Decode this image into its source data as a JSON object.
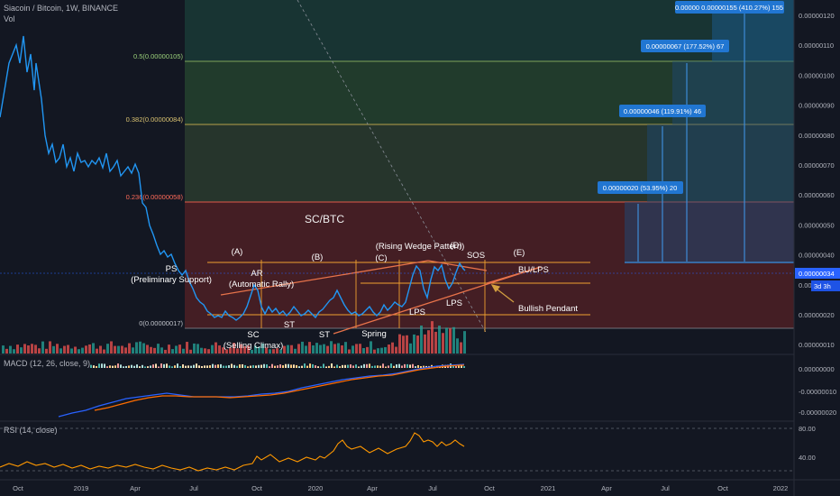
{
  "header": {
    "symbol_line": "Siacoin / Bitcoin, 1W, BINANCE",
    "volume_label": "Vol",
    "macd_label": "MACD (12, 26, close, 9)",
    "rsi_label": "RSI (14, close)"
  },
  "price_axis": {
    "ticks": [
      "0.00000120",
      "0.00000110",
      "0.00000100",
      "0.00000090",
      "0.00000080",
      "0.00000070",
      "0.00000060",
      "0.00000050",
      "0.00000040",
      "0.00000030",
      "0.00000020",
      "0.00000010"
    ],
    "current_price": "0.00000034",
    "countdown": "3d 3h",
    "current_price_color": "#2962ff"
  },
  "macd_axis": {
    "ticks": [
      "0.00000000",
      "-0.00000010",
      "-0.00000020"
    ]
  },
  "rsi_axis": {
    "ticks": [
      "80.00",
      "40.00"
    ]
  },
  "time_axis": {
    "labels": [
      "Oct",
      "2019",
      "Apr",
      "Jul",
      "Oct",
      "2020",
      "Apr",
      "Jul",
      "Oct",
      "2021",
      "Apr",
      "Jul",
      "Oct",
      "2022"
    ]
  },
  "fib_levels": {
    "level_05": "0.5(0.00000105)",
    "level_0382": "0.382(0.00000084)",
    "level_0236": "0.236(0.00000058)",
    "level_0": "0(0.00000017)"
  },
  "targets": [
    {
      "label": "0.00000020 (53.95%) 20"
    },
    {
      "label": "0.00000046 (119.91%) 46"
    },
    {
      "label": "0.00000067 (177.52%) 67"
    },
    {
      "label": "0.00000 0.00000155 (410.27%) 155"
    }
  ],
  "annotations": {
    "pair_title": "SC/BTC",
    "ps": "PS",
    "ps_full": "(Preliminary Support)",
    "ar": "AR",
    "ar_full": "(Automatic Rally)",
    "sc": "SC",
    "sc_full": "(Selling Climax)",
    "st1": "ST",
    "st2": "ST",
    "spring": "Spring",
    "lps1": "LPS",
    "lps2": "LPS",
    "sos": "SOS",
    "phase_a": "(A)",
    "phase_b": "(B)",
    "phase_c": "(C)",
    "phase_d": "(D)",
    "phase_e": "(E)",
    "rising_wedge": "(Rising Wedge Pattern)",
    "bu_lps": "BU/LPS",
    "bullish_pendant": "Bullish Pendant"
  },
  "colors": {
    "background": "#131722",
    "price_line": "#2196f3",
    "volume_up": "#26a69a",
    "volume_down": "#ef5350",
    "macd_line": "#2962ff",
    "signal_line": "#ff6d00",
    "rsi_line": "#ff9800",
    "zone_green": "#1e4d3c",
    "zone_red": "#5a1e22",
    "annotation_orange": "#ff9800"
  }
}
